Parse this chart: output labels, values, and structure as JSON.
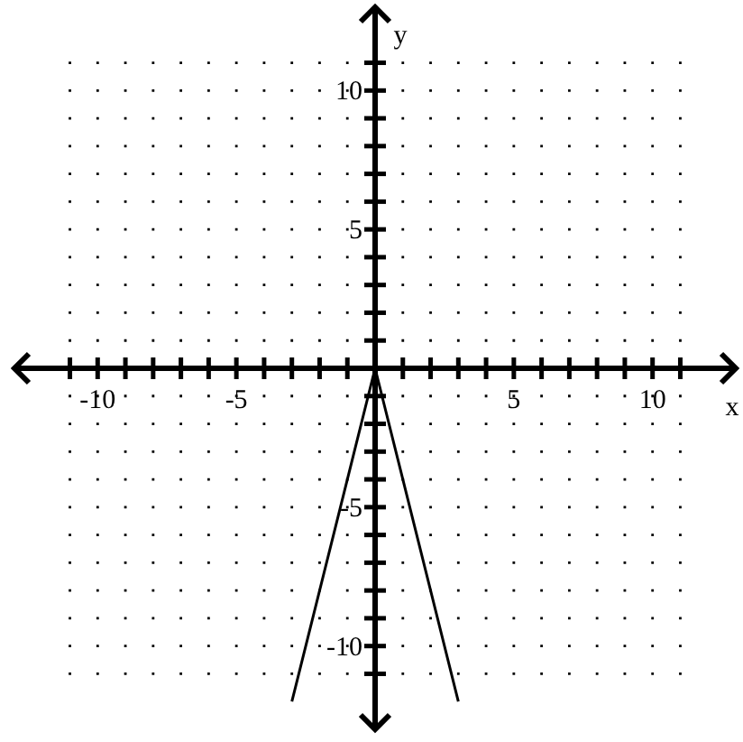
{
  "chart_data": {
    "type": "line",
    "xlabel": "x",
    "ylabel": "y",
    "x": [
      -3,
      0,
      3
    ],
    "series": [
      {
        "color": "#000000",
        "values": [
          -12,
          0,
          -12
        ]
      }
    ],
    "xlim": [
      -13,
      13
    ],
    "ylim": [
      -13,
      13
    ],
    "xticks": [
      {
        "value": -11,
        "label": null
      },
      -10,
      {
        "value": -9,
        "label": null
      },
      {
        "value": -8,
        "label": null
      },
      {
        "value": -7,
        "label": null
      },
      {
        "value": -6,
        "label": null
      },
      -5,
      {
        "value": -4,
        "label": null
      },
      {
        "value": -3,
        "label": null
      },
      {
        "value": -2,
        "label": null
      },
      {
        "value": -1,
        "label": null
      },
      {
        "value": 1,
        "label": null
      },
      {
        "value": 2,
        "label": null
      },
      {
        "value": 3,
        "label": null
      },
      {
        "value": 4,
        "label": null
      },
      5,
      {
        "value": 6,
        "label": null
      },
      {
        "value": 7,
        "label": null
      },
      {
        "value": 8,
        "label": null
      },
      {
        "value": 9,
        "label": null
      },
      10,
      {
        "value": 11,
        "label": null
      }
    ],
    "yticks": [
      {
        "value": -11,
        "label": null
      },
      -10,
      {
        "value": -9,
        "label": null
      },
      {
        "value": -8,
        "label": null
      },
      {
        "value": -7,
        "label": null
      },
      {
        "value": -6,
        "label": null
      },
      -5,
      {
        "value": -4,
        "label": null
      },
      {
        "value": -3,
        "label": null
      },
      {
        "value": -2,
        "label": null
      },
      {
        "value": -1,
        "label": null
      },
      {
        "value": 1,
        "label": null
      },
      {
        "value": 2,
        "label": null
      },
      {
        "value": 3,
        "label": null
      },
      {
        "value": 4,
        "label": null
      },
      5,
      {
        "value": 6,
        "label": null
      },
      {
        "value": 7,
        "label": null
      },
      {
        "value": 8,
        "label": null
      },
      {
        "value": 9,
        "label": null
      },
      10,
      {
        "value": 11,
        "label": null
      }
    ],
    "grid": true,
    "marker": "none",
    "line_style": "solid"
  }
}
